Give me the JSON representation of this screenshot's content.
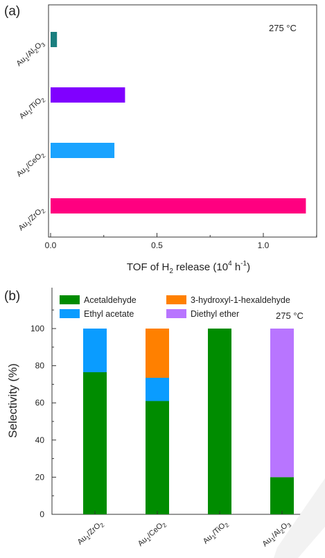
{
  "panel_a": {
    "label": "(a)",
    "temperature": "275 °C",
    "xlabel": {
      "main": "TOF of H",
      "sub": "2",
      "mid": " release (10",
      "sup": "4",
      "unit": " h",
      "unitsup": "-1",
      "end": ")"
    },
    "xticks": [
      "0.0",
      "0.5",
      "1.0"
    ],
    "categories": [
      {
        "parts": [
          [
            "Au",
            "n"
          ],
          [
            "1",
            "sub"
          ],
          [
            "/Al",
            "n"
          ],
          [
            "2",
            "sub"
          ],
          [
            "O",
            "n"
          ],
          [
            "3",
            "sub"
          ]
        ]
      },
      {
        "parts": [
          [
            "Au",
            "n"
          ],
          [
            "1",
            "sub"
          ],
          [
            "/TiO",
            "n"
          ],
          [
            "2",
            "sub"
          ]
        ]
      },
      {
        "parts": [
          [
            "Au",
            "n"
          ],
          [
            "1",
            "sub"
          ],
          [
            "/CeO",
            "n"
          ],
          [
            "2",
            "sub"
          ]
        ]
      },
      {
        "parts": [
          [
            "Au",
            "n"
          ],
          [
            "1",
            "sub"
          ],
          [
            "/ZrO",
            "n"
          ],
          [
            "2",
            "sub"
          ]
        ]
      }
    ]
  },
  "panel_b": {
    "label": "(b)",
    "temperature": "275 °C",
    "ylabel": "Selectivity (%)",
    "yticks": [
      "0",
      "20",
      "40",
      "60",
      "80",
      "100"
    ],
    "legend": [
      "Acetaldehyde",
      "Ethyl acetate",
      "3-hydroxyl-1-hexaldehyde",
      "Diethyl ether"
    ],
    "categories": [
      {
        "parts": [
          [
            "Au",
            "n"
          ],
          [
            "1",
            "sub"
          ],
          [
            "/ZrO",
            "n"
          ],
          [
            "2",
            "sub"
          ]
        ]
      },
      {
        "parts": [
          [
            "Au",
            "n"
          ],
          [
            "1",
            "sub"
          ],
          [
            "/CeO",
            "n"
          ],
          [
            "2",
            "sub"
          ]
        ]
      },
      {
        "parts": [
          [
            "Au",
            "n"
          ],
          [
            "1",
            "sub"
          ],
          [
            "/TiO",
            "n"
          ],
          [
            "2",
            "sub"
          ]
        ]
      },
      {
        "parts": [
          [
            "Au",
            "n"
          ],
          [
            "1",
            "sub"
          ],
          [
            "/Al",
            "n"
          ],
          [
            "2",
            "sub"
          ],
          [
            "O",
            "n"
          ],
          [
            "3",
            "sub"
          ]
        ]
      }
    ]
  },
  "chart_data": [
    {
      "type": "bar",
      "orientation": "horizontal",
      "categories": [
        "Au1/Al2O3",
        "Au1/TiO2",
        "Au1/CeO2",
        "Au1/ZrO2"
      ],
      "values": [
        0.03,
        0.35,
        0.3,
        1.2
      ],
      "colors": [
        "#1a7f7f",
        "#8000ff",
        "#1aa3ff",
        "#ff0080"
      ],
      "xlabel": "TOF of H2 release (10^4 h^-1)",
      "xlim": [
        0,
        1.3
      ],
      "annotation": "275 °C"
    },
    {
      "type": "bar",
      "stacked": true,
      "categories": [
        "Au1/ZrO2",
        "Au1/CeO2",
        "Au1/TiO2",
        "Au1/Al2O3"
      ],
      "series": [
        {
          "name": "Acetaldehyde",
          "color": "#008c00",
          "values": [
            76.5,
            61,
            100,
            20
          ]
        },
        {
          "name": "Ethyl acetate",
          "color": "#0a9cff",
          "values": [
            23.5,
            12.5,
            0,
            0
          ]
        },
        {
          "name": "3-hydroxyl-1-hexaldehyde",
          "color": "#ff8000",
          "values": [
            0,
            26.5,
            0,
            0
          ]
        },
        {
          "name": "Diethyl ether",
          "color": "#b875ff",
          "values": [
            0,
            0,
            0,
            80
          ]
        }
      ],
      "ylabel": "Selectivity (%)",
      "ylim": [
        0,
        115
      ],
      "legend_position": "top",
      "annotation": "275 °C"
    }
  ]
}
